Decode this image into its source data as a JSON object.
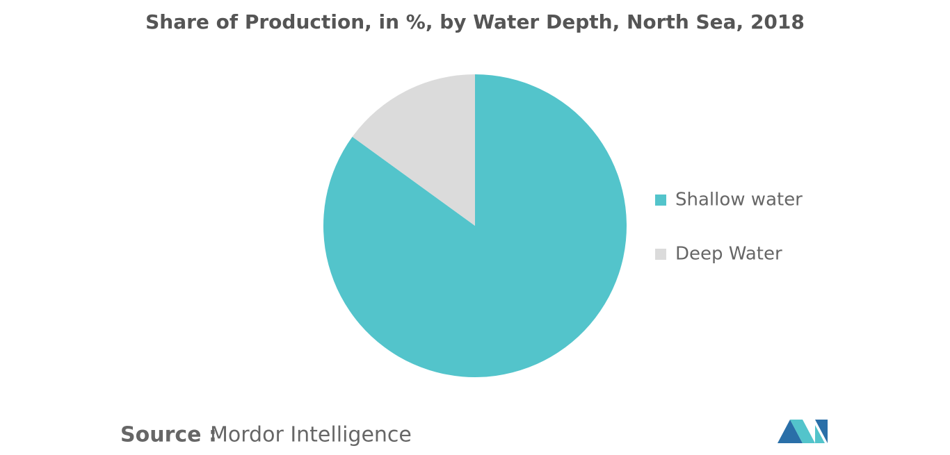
{
  "chart_data": {
    "type": "pie",
    "title": "Share of Production, in %, by Water Depth, North Sea, 2018",
    "categories": [
      "Shallow water",
      "Deep Water"
    ],
    "values": [
      85,
      15
    ],
    "colors": [
      "#53c4cb",
      "#dbdbdb"
    ],
    "legend": "right"
  },
  "footer": {
    "source_label": "Source :",
    "source": "Mordor Intelligence"
  }
}
